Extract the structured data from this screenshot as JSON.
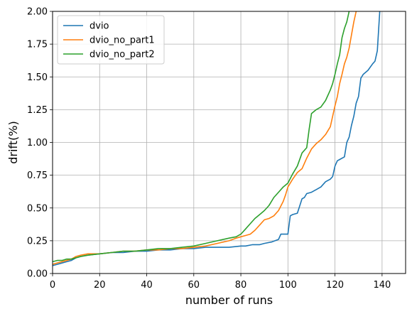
{
  "chart_data": {
    "type": "line",
    "xlabel": "number of runs",
    "ylabel": "drift(%)",
    "xlim": [
      0,
      150
    ],
    "ylim": [
      0,
      2.0
    ],
    "xticks": [
      0,
      20,
      40,
      60,
      80,
      100,
      120,
      140
    ],
    "yticks": [
      0.0,
      0.25,
      0.5,
      0.75,
      1.0,
      1.25,
      1.5,
      1.75,
      2.0
    ],
    "xtick_labels": [
      "0",
      "20",
      "40",
      "60",
      "80",
      "100",
      "120",
      "140"
    ],
    "ytick_labels": [
      "0.00",
      "0.25",
      "0.50",
      "0.75",
      "1.00",
      "1.25",
      "1.50",
      "1.75",
      "2.00"
    ],
    "grid": true,
    "legend_position": "top-left",
    "series": [
      {
        "name": "dvio",
        "color": "#1f77b4",
        "x": [
          0,
          2,
          4,
          6,
          8,
          10,
          12,
          15,
          20,
          25,
          30,
          35,
          40,
          45,
          50,
          55,
          60,
          65,
          70,
          75,
          80,
          82,
          85,
          88,
          90,
          93,
          96,
          97,
          100,
          101,
          102,
          104,
          106,
          107,
          108,
          110,
          112,
          114,
          116,
          118,
          119,
          120,
          121,
          122,
          124,
          125,
          126,
          127,
          128,
          129,
          130,
          131,
          132,
          134,
          136,
          137,
          138,
          138.5,
          139
        ],
        "y": [
          0.06,
          0.07,
          0.08,
          0.09,
          0.1,
          0.12,
          0.13,
          0.14,
          0.15,
          0.16,
          0.16,
          0.17,
          0.17,
          0.18,
          0.18,
          0.19,
          0.19,
          0.2,
          0.2,
          0.2,
          0.21,
          0.21,
          0.22,
          0.22,
          0.23,
          0.24,
          0.26,
          0.3,
          0.3,
          0.44,
          0.45,
          0.46,
          0.57,
          0.58,
          0.61,
          0.62,
          0.64,
          0.66,
          0.7,
          0.72,
          0.74,
          0.82,
          0.86,
          0.87,
          0.89,
          1.0,
          1.04,
          1.13,
          1.2,
          1.3,
          1.35,
          1.49,
          1.52,
          1.55,
          1.6,
          1.62,
          1.7,
          1.85,
          2.0
        ]
      },
      {
        "name": "dvio_no_part1",
        "color": "#ff7f0e",
        "x": [
          0,
          2,
          4,
          6,
          8,
          10,
          12,
          15,
          20,
          25,
          30,
          35,
          40,
          45,
          50,
          55,
          60,
          65,
          70,
          75,
          78,
          80,
          82,
          84,
          86,
          88,
          90,
          92,
          94,
          96,
          98,
          99,
          100,
          102,
          104,
          106,
          108,
          110,
          112,
          114,
          116,
          118,
          120,
          121,
          122,
          123,
          124,
          125,
          126,
          127,
          128,
          129
        ],
        "y": [
          0.07,
          0.08,
          0.09,
          0.1,
          0.11,
          0.13,
          0.14,
          0.15,
          0.15,
          0.16,
          0.17,
          0.17,
          0.18,
          0.18,
          0.19,
          0.19,
          0.2,
          0.21,
          0.23,
          0.25,
          0.27,
          0.28,
          0.29,
          0.3,
          0.33,
          0.37,
          0.41,
          0.42,
          0.44,
          0.48,
          0.55,
          0.6,
          0.66,
          0.72,
          0.77,
          0.8,
          0.88,
          0.95,
          0.99,
          1.02,
          1.06,
          1.12,
          1.28,
          1.35,
          1.45,
          1.52,
          1.6,
          1.65,
          1.72,
          1.82,
          1.92,
          2.0
        ]
      },
      {
        "name": "dvio_no_part2",
        "color": "#2ca02c",
        "x": [
          0,
          2,
          4,
          6,
          8,
          10,
          12,
          15,
          20,
          25,
          30,
          35,
          40,
          45,
          50,
          55,
          60,
          65,
          70,
          75,
          78,
          80,
          82,
          84,
          86,
          88,
          90,
          92,
          94,
          96,
          98,
          100,
          102,
          104,
          106,
          108,
          109,
          110,
          112,
          114,
          116,
          118,
          119,
          120,
          121,
          122,
          123,
          124,
          125,
          126
        ],
        "y": [
          0.09,
          0.1,
          0.1,
          0.11,
          0.11,
          0.12,
          0.13,
          0.14,
          0.15,
          0.16,
          0.17,
          0.17,
          0.18,
          0.19,
          0.19,
          0.2,
          0.21,
          0.23,
          0.25,
          0.27,
          0.28,
          0.3,
          0.34,
          0.38,
          0.42,
          0.45,
          0.48,
          0.52,
          0.58,
          0.62,
          0.66,
          0.69,
          0.76,
          0.82,
          0.92,
          0.96,
          1.1,
          1.22,
          1.25,
          1.27,
          1.32,
          1.4,
          1.45,
          1.52,
          1.6,
          1.67,
          1.8,
          1.87,
          1.92,
          2.0
        ]
      }
    ]
  }
}
